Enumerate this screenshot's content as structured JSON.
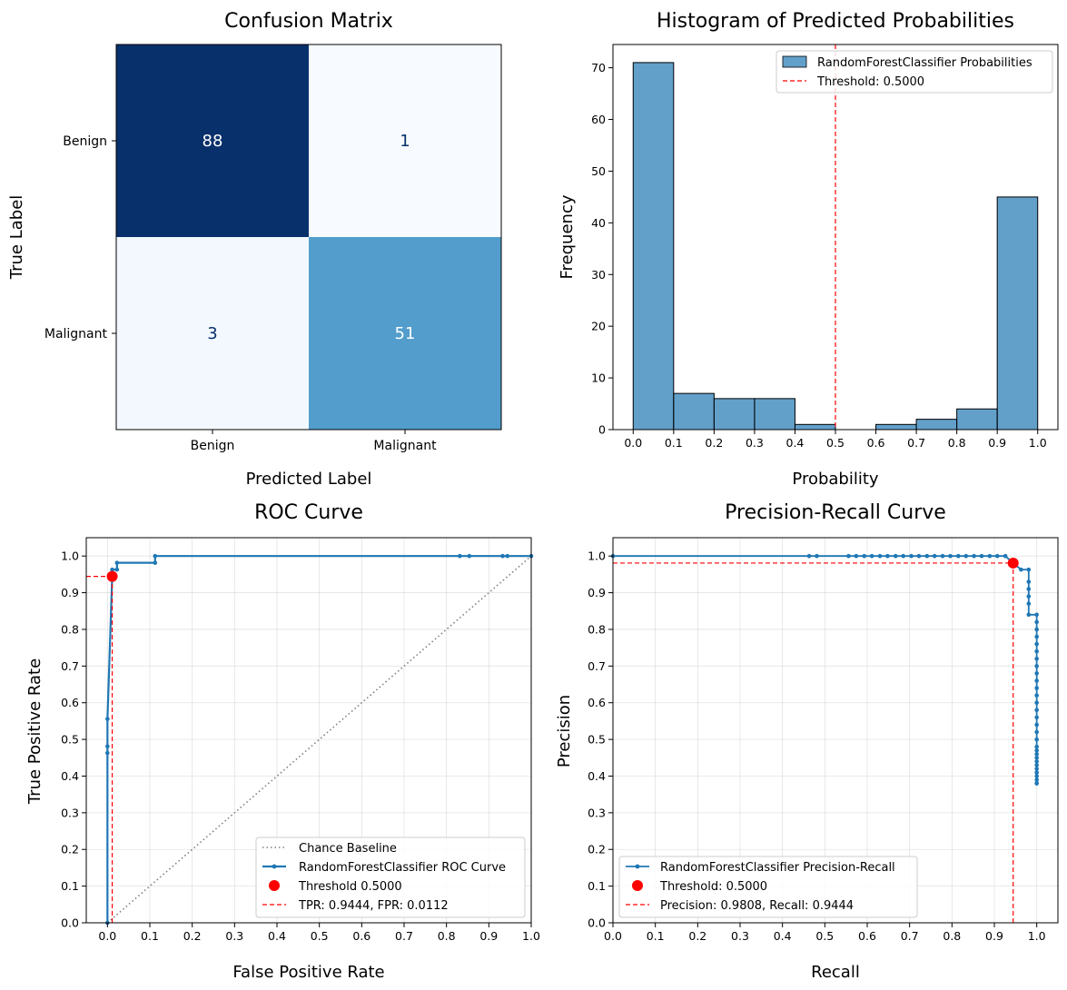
{
  "chart_data": [
    {
      "type": "heatmap",
      "title": "Confusion Matrix",
      "xlabel": "Predicted Label",
      "ylabel": "True Label",
      "x_categories": [
        "Benign",
        "Malignant"
      ],
      "y_categories": [
        "Benign",
        "Malignant"
      ],
      "values": [
        [
          88,
          1
        ],
        [
          3,
          51
        ]
      ],
      "colormap": "Blues"
    },
    {
      "type": "bar",
      "title": "Histogram of Predicted Probabilities",
      "xlabel": "Probability",
      "ylabel": "Frequency",
      "bin_edges": [
        0.0,
        0.1,
        0.2,
        0.3,
        0.4,
        0.5,
        0.6,
        0.7,
        0.8,
        0.9,
        1.0
      ],
      "values": [
        71,
        7,
        6,
        6,
        1,
        0,
        1,
        2,
        4,
        45
      ],
      "xlim": [
        -0.05,
        1.05
      ],
      "ylim": [
        0,
        74.5
      ],
      "xticks": [
        "0.0",
        "0.1",
        "0.2",
        "0.3",
        "0.4",
        "0.5",
        "0.6",
        "0.7",
        "0.8",
        "0.9",
        "1.0"
      ],
      "yticks": [
        "0",
        "10",
        "20",
        "30",
        "40",
        "50",
        "60",
        "70"
      ],
      "legend": [
        "RandomForestClassifier Probabilities",
        "Threshold: 0.5000"
      ],
      "threshold": 0.5,
      "bar_color": "#1f77b4",
      "threshold_color": "#ff0000",
      "legend_position": "top-right"
    },
    {
      "type": "line",
      "title": "ROC Curve",
      "xlabel": "False Positive Rate",
      "ylabel": "True Positive Rate",
      "xlim": [
        -0.05,
        1.0
      ],
      "ylim": [
        0,
        1.05
      ],
      "xticks": [
        "0.0",
        "0.1",
        "0.2",
        "0.3",
        "0.4",
        "0.5",
        "0.6",
        "0.7",
        "0.8",
        "0.9",
        "1.0"
      ],
      "yticks": [
        "0.0",
        "0.1",
        "0.2",
        "0.3",
        "0.4",
        "0.5",
        "0.6",
        "0.7",
        "0.8",
        "0.9",
        "1.0"
      ],
      "grid": true,
      "series": [
        {
          "name": "Chance Baseline",
          "x": [
            0,
            1
          ],
          "y": [
            0,
            1
          ],
          "style": "dotted",
          "color": "#808080"
        },
        {
          "name": "RandomForestClassifier ROC Curve",
          "color": "#1f77b4",
          "x": [
            0,
            0,
            0,
            0,
            0.0112,
            0.0112,
            0.0225,
            0.0225,
            0.1124,
            0.1124,
            0.8315,
            0.8539,
            0.9326,
            0.9438,
            1.0
          ],
          "y": [
            0,
            0.463,
            0.481,
            0.556,
            0.9444,
            0.963,
            0.963,
            0.9815,
            0.9815,
            1.0,
            1.0,
            1.0,
            1.0,
            1.0,
            1.0
          ]
        }
      ],
      "threshold_point": {
        "label": "Threshold 0.5000",
        "x": 0.0112,
        "y": 0.9444
      },
      "threshold_lines_label": "TPR: 0.9444, FPR: 0.0112",
      "legend_position": "lower-right"
    },
    {
      "type": "line",
      "title": "Precision-Recall Curve",
      "xlabel": "Recall",
      "ylabel": "Precision",
      "xlim": [
        0,
        1.05
      ],
      "ylim": [
        0,
        1.05
      ],
      "xticks": [
        "0.0",
        "0.1",
        "0.2",
        "0.3",
        "0.4",
        "0.5",
        "0.6",
        "0.7",
        "0.8",
        "0.9",
        "1.0"
      ],
      "yticks": [
        "0.0",
        "0.1",
        "0.2",
        "0.3",
        "0.4",
        "0.5",
        "0.6",
        "0.7",
        "0.8",
        "0.9",
        "1.0"
      ],
      "grid": true,
      "series": [
        {
          "name": "RandomForestClassifier Precision-Recall",
          "color": "#1f77b4",
          "x": [
            0.0,
            0.463,
            0.481,
            0.556,
            0.574,
            0.593,
            0.611,
            0.63,
            0.648,
            0.667,
            0.685,
            0.704,
            0.722,
            0.741,
            0.759,
            0.778,
            0.796,
            0.815,
            0.833,
            0.852,
            0.87,
            0.889,
            0.907,
            0.926,
            0.944,
            0.963,
            0.981,
            0.981,
            0.981,
            0.981,
            0.981,
            0.981,
            1.0,
            1.0,
            1.0,
            1.0,
            1.0,
            1.0,
            1.0,
            1.0,
            1.0,
            1.0,
            1.0,
            1.0,
            1.0,
            1.0,
            1.0,
            1.0,
            1.0,
            1.0,
            1.0,
            1.0,
            1.0,
            1.0,
            1.0,
            1.0,
            1.0,
            1.0,
            1.0,
            1.0,
            1.0,
            1.0
          ],
          "y": [
            1.0,
            1.0,
            1.0,
            1.0,
            1.0,
            1.0,
            1.0,
            1.0,
            1.0,
            1.0,
            1.0,
            1.0,
            1.0,
            1.0,
            1.0,
            1.0,
            1.0,
            1.0,
            1.0,
            1.0,
            1.0,
            1.0,
            1.0,
            1.0,
            0.9808,
            0.963,
            0.963,
            0.93,
            0.91,
            0.89,
            0.87,
            0.84,
            0.84,
            0.82,
            0.8,
            0.78,
            0.76,
            0.74,
            0.72,
            0.7,
            0.68,
            0.66,
            0.64,
            0.62,
            0.6,
            0.58,
            0.56,
            0.54,
            0.52,
            0.5,
            0.48,
            0.47,
            0.46,
            0.45,
            0.44,
            0.43,
            0.42,
            0.41,
            0.4,
            0.39,
            0.38,
            0.38
          ]
        }
      ],
      "threshold_point": {
        "label": "Threshold: 0.5000",
        "x": 0.9444,
        "y": 0.9808
      },
      "threshold_lines_label": "Precision: 0.9808, Recall: 0.9444",
      "legend_position": "lower-left"
    }
  ]
}
